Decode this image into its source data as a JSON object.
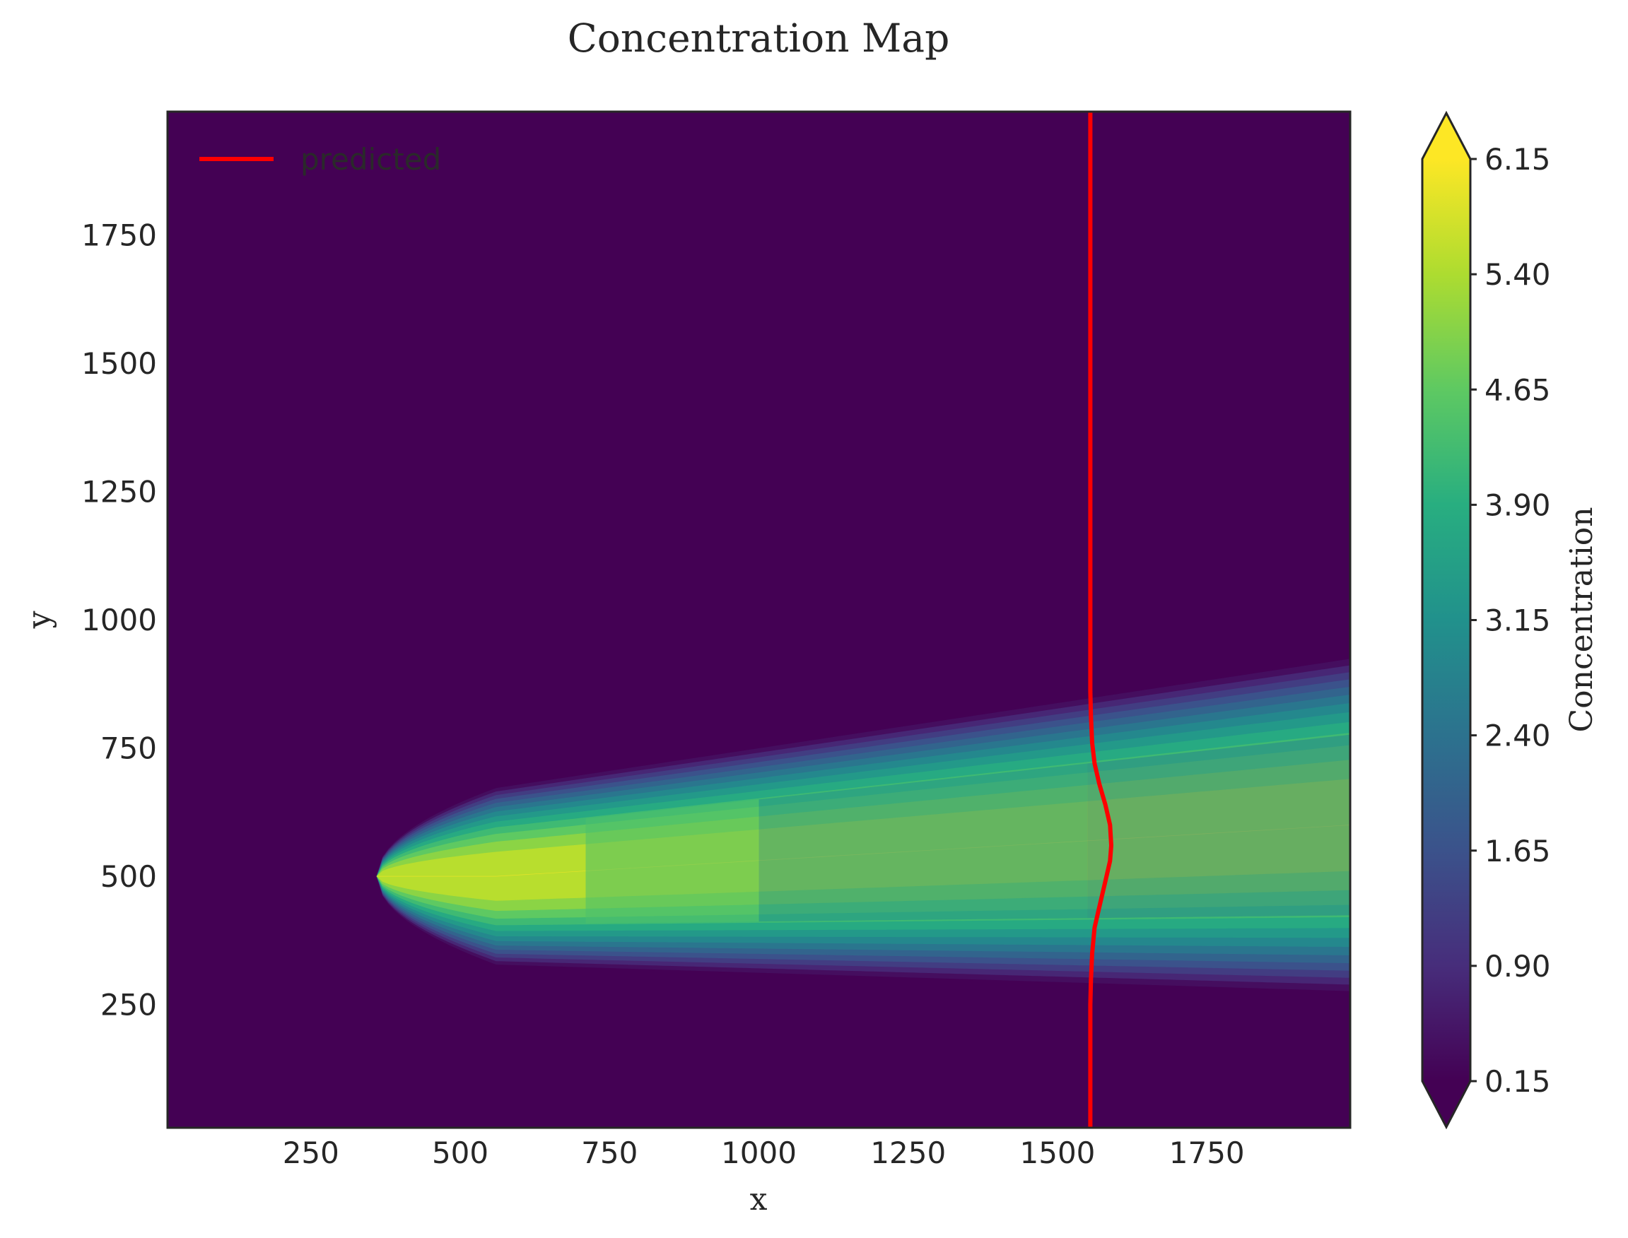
{
  "chart_data": {
    "type": "heatmap",
    "title": "Concentration Map",
    "xlabel": "x",
    "ylabel": "y",
    "xlim": [
      10,
      1990
    ],
    "ylim": [
      10,
      1990
    ],
    "xticks": [
      "250",
      "500",
      "750",
      "1000",
      "1250",
      "1500",
      "1750"
    ],
    "yticks": [
      "250",
      "500",
      "750",
      "1000",
      "1250",
      "1500",
      "1750"
    ],
    "colormap": "viridis",
    "colorbar": {
      "label": "Concentration",
      "ticks": [
        "0.15",
        "0.90",
        "1.65",
        "2.40",
        "3.15",
        "3.90",
        "4.65",
        "5.40",
        "6.15"
      ],
      "range": [
        0.15,
        6.15
      ],
      "extend": "both"
    },
    "field": {
      "background_value": 0.15,
      "plume_source": {
        "x": 560,
        "y": 500
      },
      "peak_value": 6.15,
      "plume_edge_start_x": 360,
      "plume_outer_halfwidth_at_500": 170,
      "plume_outer_halfwidth_at_1990": 320,
      "plume_center_at_1990": 600,
      "value_at_x_1000": 4.4,
      "value_at_x_1550": 3.2,
      "value_at_x_1990": 2.9
    },
    "series": [
      {
        "name": "predicted",
        "color": "#ff0000",
        "x": [
          1555,
          1555,
          1555,
          1556,
          1558,
          1562,
          1570,
          1580,
          1588,
          1590,
          1588,
          1580,
          1570,
          1562,
          1558,
          1556,
          1555,
          1555,
          1555
        ],
        "y": [
          10,
          150,
          250,
          300,
          350,
          400,
          440,
          490,
          530,
          560,
          600,
          640,
          680,
          720,
          760,
          810,
          860,
          1400,
          1990
        ]
      }
    ],
    "legend": {
      "placement": "top-left"
    },
    "grid": false
  }
}
